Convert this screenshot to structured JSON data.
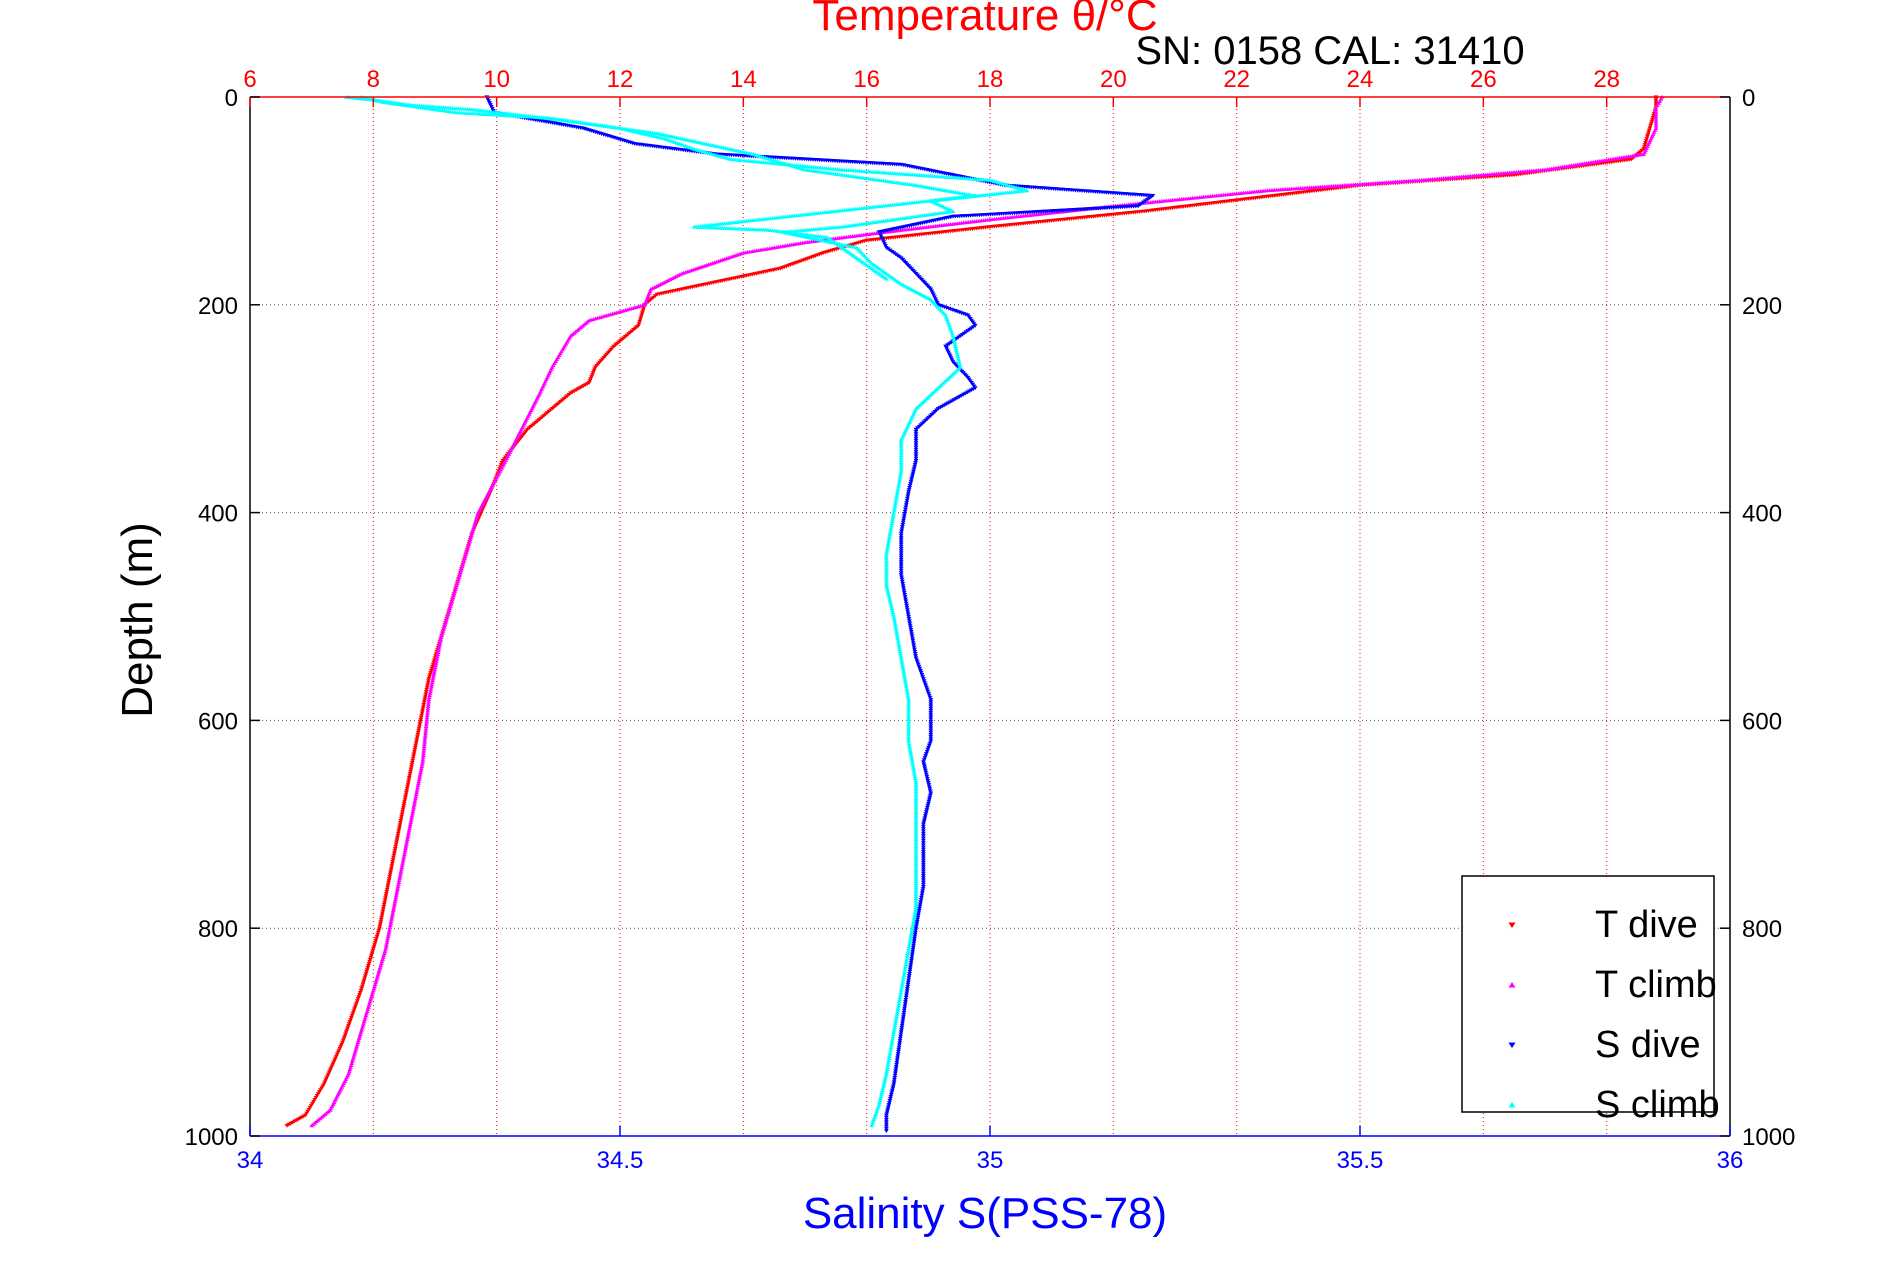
{
  "chart_data": {
    "type": "scatter",
    "title": "Temperature θ/°C",
    "subtitle": "SN: 0158  CAL: 31410",
    "xlabel": "Salinity S(PSS-78)",
    "ylabel": "Depth (m)",
    "x_axis": {
      "label": "Salinity S(PSS-78)",
      "range": [
        34,
        36
      ],
      "ticks": [
        "34",
        "34.5",
        "35",
        "35.5",
        "36"
      ],
      "color": "#0000ff",
      "position": "bottom"
    },
    "x2_axis": {
      "label": "Temperature θ/°C",
      "range": [
        6,
        30
      ],
      "ticks": [
        "6",
        "8",
        "10",
        "12",
        "14",
        "16",
        "18",
        "20",
        "22",
        "24",
        "26",
        "28"
      ],
      "color": "#ff0000",
      "position": "top"
    },
    "y_axis": {
      "label": "Depth (m)",
      "range": [
        0,
        1000
      ],
      "reversed": true,
      "ticks": [
        "0",
        "200",
        "400",
        "600",
        "800",
        "1000"
      ],
      "mirrored_right": true
    },
    "grid": {
      "vertical": "temperature ticks, red dotted",
      "horizontal": "depth ticks, gray dotted"
    },
    "legend": {
      "placement": "bottom-right"
    },
    "series": [
      {
        "name": "T dive",
        "axis": "temperature",
        "color": "#ff0000",
        "marker": "down-triangle",
        "points": [
          [
            28.8,
            0
          ],
          [
            28.8,
            10
          ],
          [
            28.7,
            30
          ],
          [
            28.6,
            50
          ],
          [
            28.4,
            60
          ],
          [
            26.5,
            75
          ],
          [
            24,
            85
          ],
          [
            20.5,
            110
          ],
          [
            18,
            125
          ],
          [
            16,
            138
          ],
          [
            15.3,
            150
          ],
          [
            14.6,
            165
          ],
          [
            13,
            185
          ],
          [
            12.6,
            190
          ],
          [
            12.4,
            200
          ],
          [
            12.3,
            220
          ],
          [
            11.9,
            240
          ],
          [
            11.6,
            260
          ],
          [
            11.5,
            275
          ],
          [
            11.2,
            285
          ],
          [
            10.9,
            300
          ],
          [
            10.5,
            320
          ],
          [
            10.1,
            350
          ],
          [
            9.9,
            380
          ],
          [
            9.6,
            420
          ],
          [
            9.4,
            460
          ],
          [
            9.2,
            500
          ],
          [
            8.9,
            560
          ],
          [
            8.7,
            620
          ],
          [
            8.5,
            680
          ],
          [
            8.3,
            740
          ],
          [
            8.1,
            800
          ],
          [
            7.8,
            860
          ],
          [
            7.5,
            910
          ],
          [
            7.2,
            950
          ],
          [
            6.9,
            980
          ],
          [
            6.6,
            990
          ]
        ]
      },
      {
        "name": "T climb",
        "axis": "temperature",
        "color": "#ff00ff",
        "marker": "up-triangle",
        "points": [
          [
            28.9,
            0
          ],
          [
            28.8,
            10
          ],
          [
            28.8,
            30
          ],
          [
            28.6,
            55
          ],
          [
            27,
            70
          ],
          [
            25,
            80
          ],
          [
            22.5,
            90
          ],
          [
            20,
            105
          ],
          [
            18,
            118
          ],
          [
            16.3,
            130
          ],
          [
            15,
            140
          ],
          [
            14,
            150
          ],
          [
            13,
            170
          ],
          [
            12.5,
            185
          ],
          [
            12.4,
            200
          ],
          [
            11.5,
            215
          ],
          [
            11.2,
            230
          ],
          [
            10.9,
            260
          ],
          [
            10.7,
            285
          ],
          [
            10.4,
            320
          ],
          [
            10.1,
            355
          ],
          [
            9.7,
            400
          ],
          [
            9.4,
            460
          ],
          [
            9.1,
            520
          ],
          [
            8.9,
            580
          ],
          [
            8.8,
            640
          ],
          [
            8.6,
            700
          ],
          [
            8.4,
            760
          ],
          [
            8.2,
            820
          ],
          [
            7.9,
            880
          ],
          [
            7.6,
            940
          ],
          [
            7.3,
            975
          ],
          [
            7,
            990
          ]
        ]
      },
      {
        "name": "S dive",
        "axis": "salinity",
        "color": "#0000ff",
        "marker": "down-triangle",
        "points": [
          [
            34.32,
            0
          ],
          [
            34.33,
            15
          ],
          [
            34.45,
            30
          ],
          [
            34.52,
            45
          ],
          [
            34.63,
            55
          ],
          [
            34.88,
            65
          ],
          [
            34.95,
            75
          ],
          [
            35.02,
            85
          ],
          [
            35.22,
            95
          ],
          [
            35.2,
            105
          ],
          [
            34.95,
            115
          ],
          [
            34.85,
            130
          ],
          [
            34.86,
            145
          ],
          [
            34.88,
            155
          ],
          [
            34.9,
            170
          ],
          [
            34.92,
            185
          ],
          [
            34.93,
            200
          ],
          [
            34.97,
            210
          ],
          [
            34.98,
            220
          ],
          [
            34.94,
            240
          ],
          [
            34.95,
            255
          ],
          [
            34.97,
            270
          ],
          [
            34.98,
            280
          ],
          [
            34.93,
            300
          ],
          [
            34.9,
            320
          ],
          [
            34.9,
            350
          ],
          [
            34.89,
            380
          ],
          [
            34.88,
            420
          ],
          [
            34.88,
            460
          ],
          [
            34.89,
            500
          ],
          [
            34.9,
            540
          ],
          [
            34.92,
            580
          ],
          [
            34.92,
            620
          ],
          [
            34.91,
            640
          ],
          [
            34.92,
            670
          ],
          [
            34.91,
            700
          ],
          [
            34.91,
            720
          ],
          [
            34.91,
            760
          ],
          [
            34.9,
            800
          ],
          [
            34.89,
            850
          ],
          [
            34.88,
            900
          ],
          [
            34.87,
            950
          ],
          [
            34.86,
            980
          ],
          [
            34.86,
            995
          ]
        ]
      },
      {
        "name": "S climb",
        "axis": "salinity",
        "color": "#00ffff",
        "marker": "up-triangle",
        "points": [
          [
            34.15,
            0
          ],
          [
            34.18,
            5
          ],
          [
            34.28,
            15
          ],
          [
            34.4,
            20
          ],
          [
            34.5,
            30
          ],
          [
            34.56,
            40
          ],
          [
            34.6,
            50
          ],
          [
            34.65,
            60
          ],
          [
            34.8,
            70
          ],
          [
            35,
            80
          ],
          [
            35.05,
            90
          ],
          [
            34.92,
            100
          ],
          [
            34.95,
            110
          ],
          [
            34.8,
            125
          ],
          [
            34.72,
            130
          ],
          [
            34.82,
            145
          ],
          [
            34.84,
            160
          ],
          [
            34.86,
            170
          ],
          [
            34.88,
            180
          ],
          [
            34.92,
            195
          ],
          [
            34.94,
            210
          ],
          [
            34.95,
            230
          ],
          [
            34.96,
            260
          ],
          [
            34.93,
            280
          ],
          [
            34.9,
            300
          ],
          [
            34.88,
            330
          ],
          [
            34.88,
            360
          ],
          [
            34.87,
            400
          ],
          [
            34.86,
            440
          ],
          [
            34.86,
            470
          ],
          [
            34.87,
            500
          ],
          [
            34.88,
            540
          ],
          [
            34.89,
            580
          ],
          [
            34.89,
            620
          ],
          [
            34.9,
            660
          ],
          [
            34.9,
            700
          ],
          [
            34.9,
            740
          ],
          [
            34.9,
            780
          ],
          [
            34.89,
            820
          ],
          [
            34.88,
            860
          ],
          [
            34.87,
            900
          ],
          [
            34.86,
            940
          ],
          [
            34.85,
            970
          ],
          [
            34.84,
            990
          ]
        ]
      },
      {
        "name": "",
        "axis": "salinity",
        "color": "#00ffff",
        "marker": "up-triangle",
        "note_ref": "surface",
        "points": [
          [
            34.13,
            0
          ],
          [
            34.17,
            3
          ],
          [
            34.22,
            8
          ],
          [
            34.3,
            12
          ],
          [
            34.42,
            22
          ],
          [
            34.55,
            35
          ],
          [
            34.68,
            55
          ],
          [
            34.75,
            70
          ],
          [
            34.9,
            85
          ],
          [
            34.98,
            95
          ],
          [
            34.6,
            125
          ],
          [
            34.7,
            128
          ],
          [
            34.78,
            135
          ],
          [
            34.86,
            175
          ]
        ]
      }
    ]
  }
}
